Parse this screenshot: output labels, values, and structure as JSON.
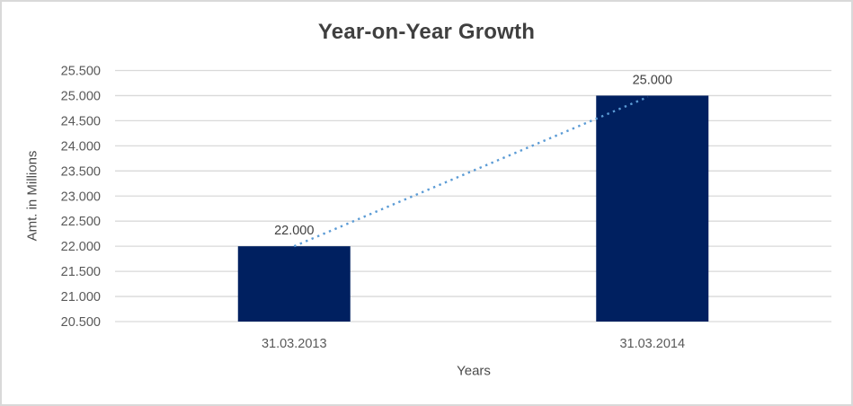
{
  "window": {
    "background_color": "#ffffff",
    "border_color": "#d9d9d9"
  },
  "chart_data": {
    "type": "bar",
    "title": "Year-on-Year Growth",
    "xlabel": "Years",
    "ylabel": "Amt. in Millions",
    "categories": [
      "31.03.2013",
      "31.03.2014"
    ],
    "values": [
      22000,
      25000
    ],
    "data_labels": [
      "22.000",
      "25.000"
    ],
    "ylim": [
      20500,
      25500
    ],
    "ytick_step": 500,
    "ytick_labels": [
      "20.500",
      "21.000",
      "21.500",
      "22.000",
      "22.500",
      "23.000",
      "23.500",
      "24.000",
      "24.500",
      "25.000",
      "25.500"
    ],
    "grid": true,
    "legend": false,
    "bar_color": "#002060",
    "trendline": {
      "style": "dotted",
      "color": "#5b9bd5",
      "from_value": 22000,
      "to_value": 25000
    },
    "colors": {
      "title_text": "#3f3f3f",
      "axis_title_text": "#4a4a4a",
      "axis_text": "#595959",
      "data_label_text": "#404040",
      "gridline": "#d9d9d9"
    }
  }
}
